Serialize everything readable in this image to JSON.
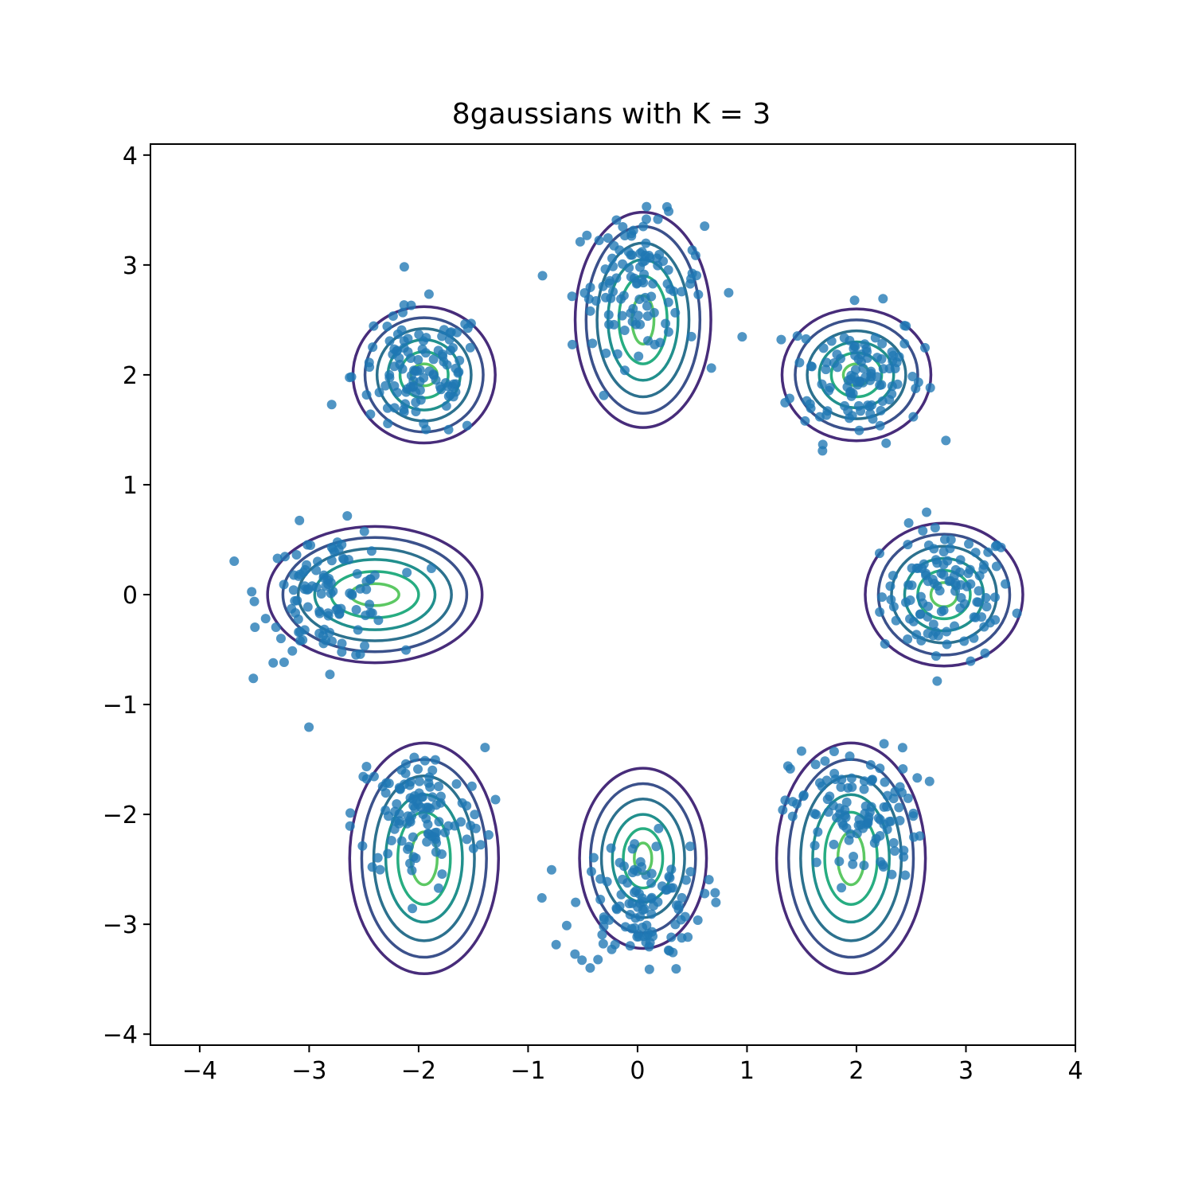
{
  "chart_data": {
    "type": "scatter",
    "title": "8gaussians with K = 3",
    "xlabel": "",
    "ylabel": "",
    "xlim": [
      -4.45,
      4.0
    ],
    "ylim": [
      -4.1,
      4.1
    ],
    "xticks": [
      -4,
      -3,
      -2,
      -1,
      0,
      1,
      2,
      3,
      4
    ],
    "yticks": [
      -4,
      -3,
      -2,
      -1,
      0,
      1,
      2,
      3,
      4
    ],
    "xtick_labels": [
      "−4",
      "−3",
      "−2",
      "−1",
      "0",
      "1",
      "2",
      "3",
      "4"
    ],
    "ytick_labels": [
      "−4",
      "−3",
      "−2",
      "−1",
      "0",
      "1",
      "2",
      "3",
      "4"
    ],
    "grid": false,
    "point_color": "#1f77b4",
    "contour_colors": [
      "#472c7a",
      "#3b518b",
      "#2c718e",
      "#21908d",
      "#27ad81",
      "#5cc863"
    ],
    "clusters": [
      {
        "cx": 2.83,
        "cy": 0.0,
        "sx": 0.3,
        "sy": 0.3,
        "n": 110
      },
      {
        "cx": 2.0,
        "cy": 2.0,
        "sx": 0.3,
        "sy": 0.3,
        "n": 110
      },
      {
        "cx": 0.0,
        "cy": 2.83,
        "sx": 0.3,
        "sy": 0.3,
        "n": 110
      },
      {
        "cx": -2.0,
        "cy": 2.0,
        "sx": 0.3,
        "sy": 0.3,
        "n": 110
      },
      {
        "cx": -2.83,
        "cy": 0.0,
        "sx": 0.3,
        "sy": 0.3,
        "n": 110
      },
      {
        "cx": -2.0,
        "cy": -2.0,
        "sx": 0.3,
        "sy": 0.3,
        "n": 110
      },
      {
        "cx": 0.0,
        "cy": -2.83,
        "sx": 0.3,
        "sy": 0.3,
        "n": 110
      },
      {
        "cx": 2.0,
        "cy": -2.0,
        "sx": 0.3,
        "sy": 0.3,
        "n": 110
      }
    ],
    "contours": [
      {
        "cx": 2.8,
        "cy": 0.0,
        "rx": [
          0.72,
          0.6,
          0.48,
          0.36,
          0.24,
          0.12
        ],
        "ry": [
          0.65,
          0.55,
          0.44,
          0.33,
          0.22,
          0.11
        ]
      },
      {
        "cx": 2.0,
        "cy": 2.0,
        "rx": [
          0.68,
          0.56,
          0.45,
          0.34,
          0.23,
          0.12
        ],
        "ry": [
          0.6,
          0.5,
          0.4,
          0.3,
          0.2,
          0.1
        ]
      },
      {
        "cx": 0.05,
        "cy": 2.5,
        "rx": [
          0.62,
          0.52,
          0.42,
          0.32,
          0.22,
          0.1
        ],
        "ry": [
          0.98,
          0.85,
          0.7,
          0.55,
          0.4,
          0.22
        ]
      },
      {
        "cx": -1.95,
        "cy": 2.0,
        "rx": [
          0.65,
          0.54,
          0.43,
          0.33,
          0.22,
          0.12
        ],
        "ry": [
          0.62,
          0.52,
          0.42,
          0.32,
          0.21,
          0.1
        ]
      },
      {
        "cx": -2.4,
        "cy": 0.0,
        "rx": [
          0.98,
          0.84,
          0.7,
          0.55,
          0.4,
          0.22
        ],
        "ry": [
          0.62,
          0.52,
          0.42,
          0.32,
          0.21,
          0.1
        ]
      },
      {
        "cx": -1.95,
        "cy": -2.4,
        "rx": [
          0.68,
          0.57,
          0.46,
          0.35,
          0.24,
          0.12
        ],
        "ry": [
          1.05,
          0.9,
          0.75,
          0.58,
          0.42,
          0.24
        ]
      },
      {
        "cx": 0.05,
        "cy": -2.4,
        "rx": [
          0.58,
          0.48,
          0.38,
          0.28,
          0.18,
          0.08
        ],
        "ry": [
          0.82,
          0.68,
          0.54,
          0.4,
          0.27,
          0.14
        ]
      },
      {
        "cx": 1.95,
        "cy": -2.4,
        "rx": [
          0.68,
          0.57,
          0.46,
          0.35,
          0.24,
          0.12
        ],
        "ry": [
          1.05,
          0.9,
          0.75,
          0.58,
          0.42,
          0.24
        ]
      }
    ]
  }
}
